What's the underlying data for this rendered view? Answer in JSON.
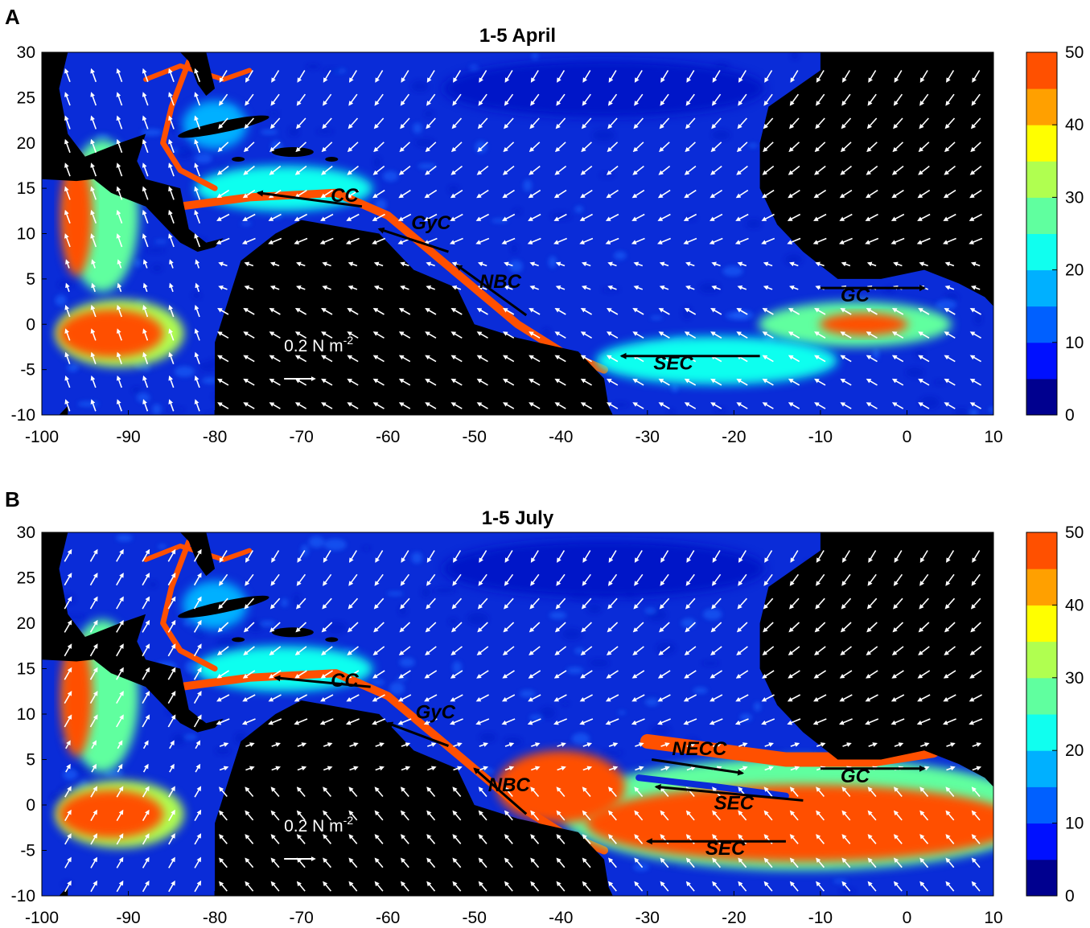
{
  "figure": {
    "panels": [
      {
        "letter": "A",
        "title": "1-5 April",
        "scale_label": "0.2 N m",
        "scale_exponent": "-2"
      },
      {
        "letter": "B",
        "title": "1-5 July",
        "scale_label": "0.2 N m",
        "scale_exponent": "-2"
      }
    ]
  },
  "chart_data": [
    {
      "type": "heatmap",
      "title": "1-5 April",
      "xlim": [
        -100,
        10
      ],
      "ylim": [
        -10,
        30
      ],
      "x_ticks": [
        -100,
        -90,
        -80,
        -70,
        -60,
        -50,
        -40,
        -30,
        -20,
        -10,
        0,
        10
      ],
      "y_ticks": [
        -10,
        -5,
        0,
        5,
        10,
        15,
        20,
        25,
        30
      ],
      "colorbar": {
        "range": [
          0,
          50
        ],
        "ticks": [
          0,
          10,
          20,
          30,
          40,
          50
        ],
        "levels": 10,
        "colors": [
          "#00008f",
          "#0010ff",
          "#0060ff",
          "#00b0ff",
          "#10ffef",
          "#60ff9f",
          "#b0ff50",
          "#ffff00",
          "#ffa000",
          "#ff5000"
        ]
      },
      "vector_scale": "0.2 N m-2",
      "current_labels": [
        {
          "text": "CC",
          "lon": -65,
          "lat": 13.5,
          "arrow_from": [
            -63,
            13
          ],
          "arrow_to": [
            -75,
            14.5
          ]
        },
        {
          "text": "GyC",
          "lon": -55,
          "lat": 10.5,
          "arrow_from": [
            -53,
            8
          ],
          "arrow_to": [
            -61,
            10.5
          ]
        },
        {
          "text": "NBC",
          "lon": -47,
          "lat": 4,
          "arrow_from": [
            -44,
            1
          ],
          "arrow_to": [
            -52,
            6.5
          ]
        },
        {
          "text": "SEC",
          "lon": -27,
          "lat": -5,
          "arrow_from": [
            -17,
            -3.5
          ],
          "arrow_to": [
            -33,
            -3.5
          ]
        },
        {
          "text": "GC",
          "lon": -6,
          "lat": 2.5,
          "arrow_from": [
            -10,
            4
          ],
          "arrow_to": [
            2,
            4
          ]
        }
      ]
    },
    {
      "type": "heatmap",
      "title": "1-5 July",
      "xlim": [
        -100,
        10
      ],
      "ylim": [
        -10,
        30
      ],
      "x_ticks": [
        -100,
        -90,
        -80,
        -70,
        -60,
        -50,
        -40,
        -30,
        -20,
        -10,
        0,
        10
      ],
      "y_ticks": [
        -10,
        -5,
        0,
        5,
        10,
        15,
        20,
        25,
        30
      ],
      "colorbar": {
        "range": [
          0,
          50
        ],
        "ticks": [
          0,
          10,
          20,
          30,
          40,
          50
        ],
        "levels": 10,
        "colors": [
          "#00008f",
          "#0010ff",
          "#0060ff",
          "#00b0ff",
          "#10ffef",
          "#60ff9f",
          "#b0ff50",
          "#ffff00",
          "#ffa000",
          "#ff5000"
        ]
      },
      "vector_scale": "0.2 N m-2",
      "current_labels": [
        {
          "text": "CC",
          "lon": -65,
          "lat": 13,
          "arrow_from": [
            -62,
            13
          ],
          "arrow_to": [
            -73,
            14
          ]
        },
        {
          "text": "GyC",
          "lon": -54.5,
          "lat": 9.5,
          "arrow_from": [
            -53,
            6.5
          ],
          "arrow_to": [
            -60,
            9
          ]
        },
        {
          "text": "NBC",
          "lon": -46,
          "lat": 1.5,
          "arrow_from": [
            -44,
            -1
          ],
          "arrow_to": [
            -50,
            4
          ]
        },
        {
          "text": "NECC",
          "lon": -24,
          "lat": 5.5,
          "arrow_from": [
            -29.5,
            5
          ],
          "arrow_to": [
            -19,
            3.5
          ]
        },
        {
          "text": "SEC",
          "lon": -20,
          "lat": -0.5,
          "arrow_from": [
            -12,
            0.5
          ],
          "arrow_to": [
            -29,
            2
          ]
        },
        {
          "text": "SEC",
          "lon": -21,
          "lat": -5.5,
          "arrow_from": [
            -14,
            -4
          ],
          "arrow_to": [
            -30,
            -4
          ]
        },
        {
          "text": "GC",
          "lon": -6,
          "lat": 2.5,
          "arrow_from": [
            -10,
            4
          ],
          "arrow_to": [
            2,
            4
          ]
        }
      ]
    }
  ]
}
